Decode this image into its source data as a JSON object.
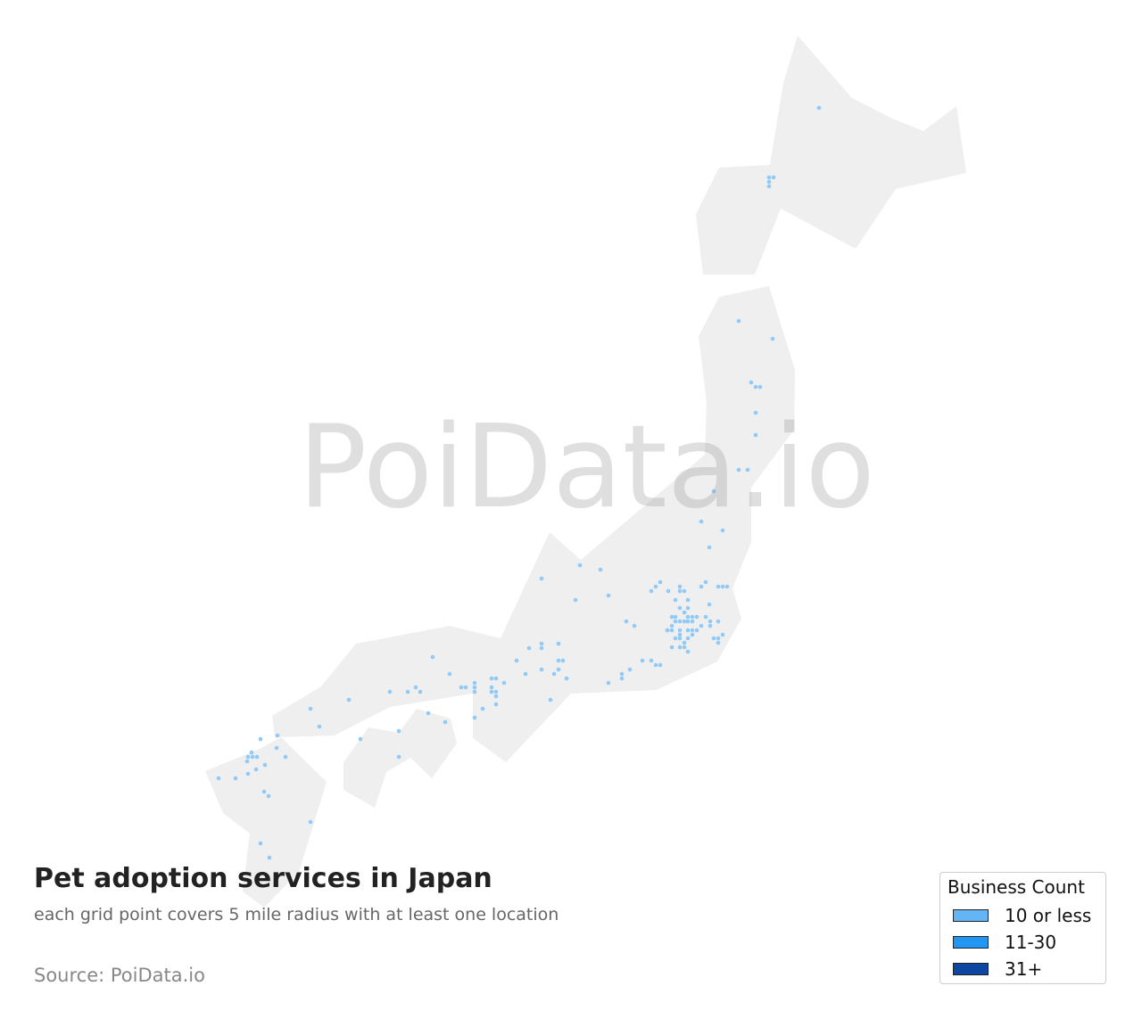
{
  "title": "Pet adoption services in Japan",
  "subtitle": "each grid point covers 5 mile radius with at least one location",
  "source": "Source: PoiData.io",
  "watermark": "PoiData.io",
  "colors": {
    "land": "#efefef",
    "point": "#90caf9"
  },
  "legend": {
    "title": "Business Count",
    "items": [
      {
        "label": "10 or less",
        "color": "#64b5f6"
      },
      {
        "label": "11-30",
        "color": "#2196f3"
      },
      {
        "label": "31+",
        "color": "#0d47a1"
      }
    ]
  }
}
